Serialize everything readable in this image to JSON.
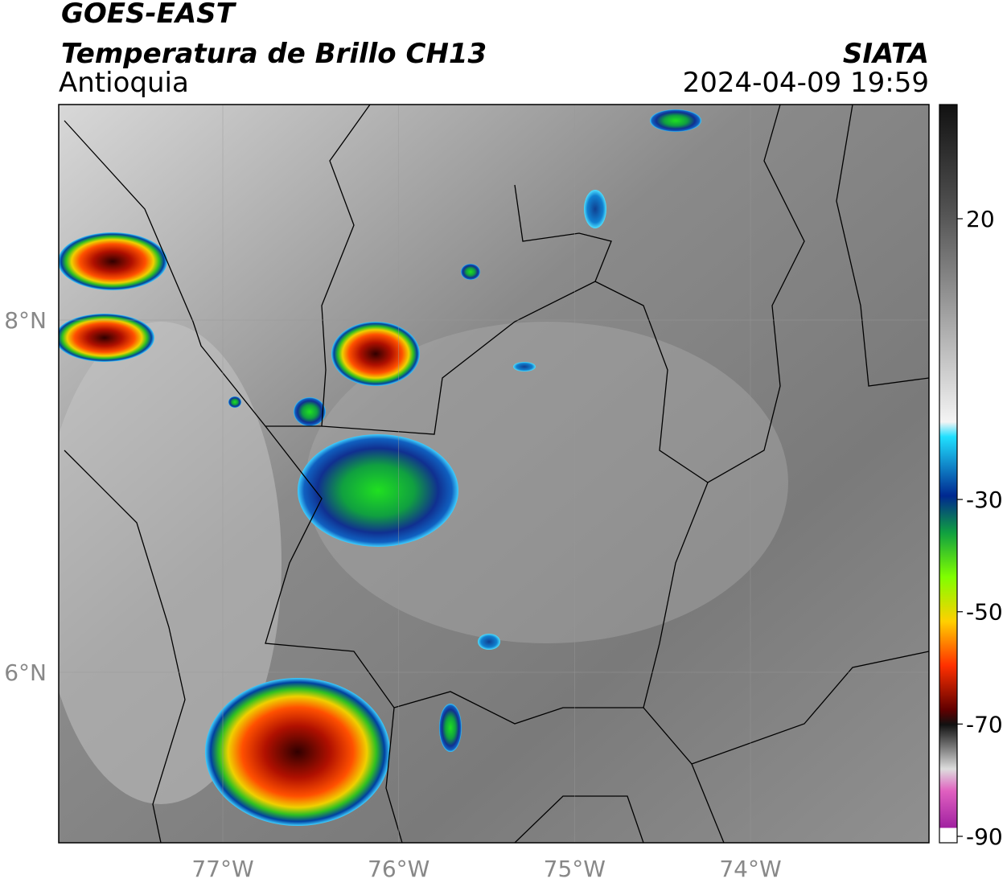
{
  "header": {
    "title": "GOES-EAST",
    "subtitle": "Temperatura de Brillo CH13",
    "region": "Antioquia",
    "source": "SIATA",
    "datetime": "2024-04-09 19:59"
  },
  "map": {
    "lat_ticks": [
      {
        "value": 8,
        "label": "8°N"
      },
      {
        "value": 6,
        "label": "6°N"
      }
    ],
    "lon_ticks": [
      {
        "value": -77,
        "label": "77°W"
      },
      {
        "value": -76,
        "label": "76°W"
      },
      {
        "value": -75,
        "label": "75°W"
      },
      {
        "value": -74,
        "label": "74°W"
      }
    ]
  },
  "colorbar": {
    "ticks": [
      20,
      -30,
      -50,
      -70,
      -90
    ]
  }
}
